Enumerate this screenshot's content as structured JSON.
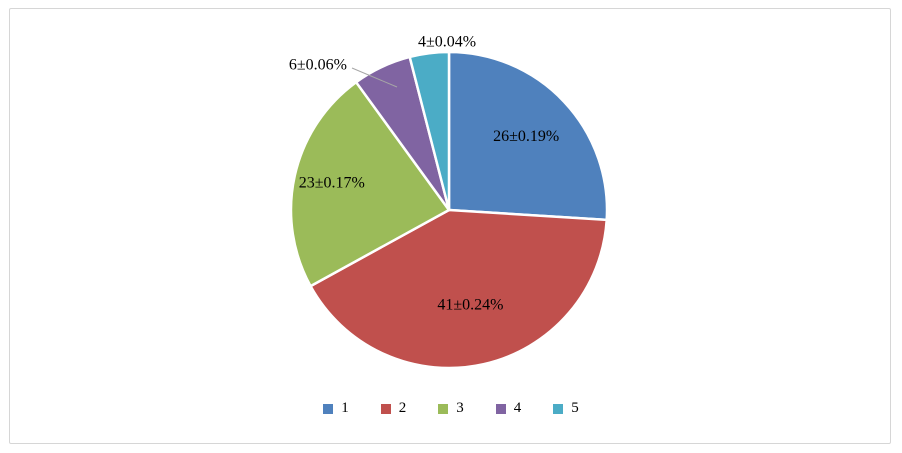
{
  "chart_data": {
    "type": "pie",
    "title": "",
    "categories": [
      "1",
      "2",
      "3",
      "4",
      "5"
    ],
    "values": [
      26,
      41,
      23,
      6,
      4
    ],
    "value_labels": [
      "26±0.19%",
      "41±0.24%",
      "23±0.17%",
      "6±0.06%",
      "4±0.04%"
    ],
    "colors": [
      "#4F81BD",
      "#C0504D",
      "#9BBB59",
      "#8064A2",
      "#4BACC6"
    ],
    "start_angle_deg": -90,
    "direction": "clockwise",
    "label_positions": [
      "inside",
      "inside",
      "inside",
      "outside",
      "outside"
    ],
    "legend_position": "bottom",
    "legend_labels": [
      "1",
      "2",
      "3",
      "4",
      "5"
    ],
    "slice_border_color": "#FFFFFF",
    "leader_line_color": "#A6A6A6"
  }
}
